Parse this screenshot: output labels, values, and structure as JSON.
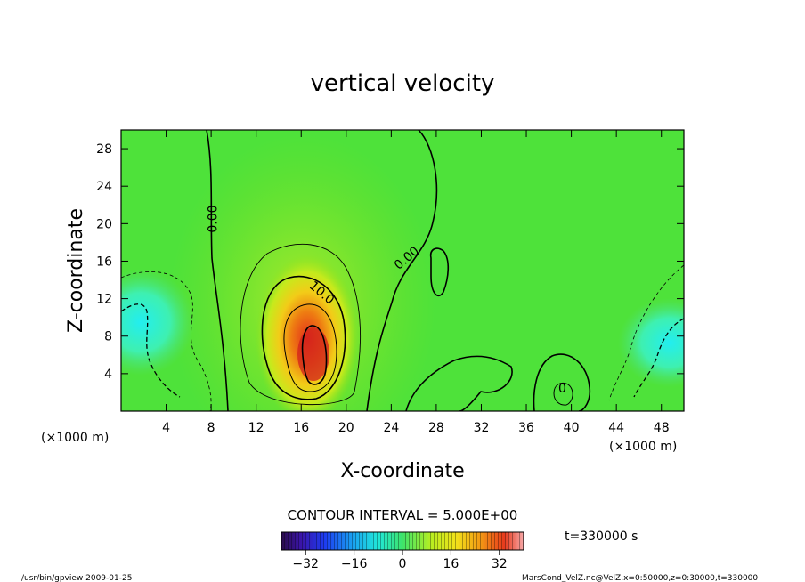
{
  "chart_data": {
    "type": "heatmap",
    "title": "vertical velocity",
    "xlabel": "X-coordinate",
    "ylabel": "Z-coordinate",
    "x_unit": "(×1000 m)",
    "y_unit": "(×1000 m)",
    "xlim": [
      0,
      50
    ],
    "ylim": [
      0,
      30
    ],
    "x_ticks": [
      4,
      8,
      12,
      16,
      20,
      24,
      28,
      32,
      36,
      40,
      44,
      48
    ],
    "y_ticks": [
      4,
      8,
      12,
      16,
      20,
      24,
      28
    ],
    "contour_labels": [
      {
        "text": "0.00",
        "x": 8.5,
        "z": 20.5,
        "rotate": -90
      },
      {
        "text": "10.0",
        "x": 17.6,
        "z": 12.3,
        "rotate": 40
      },
      {
        "text": "0.00",
        "x": 25.6,
        "z": 16.0,
        "rotate": -40
      },
      {
        "text": "0",
        "x": 39.2,
        "z": 2.0,
        "rotate": 0
      }
    ],
    "features": [
      {
        "name": "updraft core",
        "x": 17,
        "z": 6.5,
        "peak_value": 35
      },
      {
        "name": "downdraft left",
        "x": 1.5,
        "z": 9.5,
        "peak_value": -14
      },
      {
        "name": "downdraft right",
        "x": 49,
        "z": 7.5,
        "peak_value": -14
      }
    ],
    "contour_interval_label": "CONTOUR INTERVAL = 5.000E+00",
    "colorbar": {
      "min": -40,
      "max": 40,
      "ticks": [
        -32,
        -16,
        0,
        16,
        32
      ],
      "tick_labels": [
        "−32",
        "−16",
        "0",
        "16",
        "32"
      ]
    },
    "time_label": "t=330000 s"
  },
  "footer": {
    "left": "/usr/bin/gpview   2009-01-25",
    "right": "MarsCond_VelZ.nc@VelZ,x=0:50000,z=0:30000,t=330000"
  }
}
